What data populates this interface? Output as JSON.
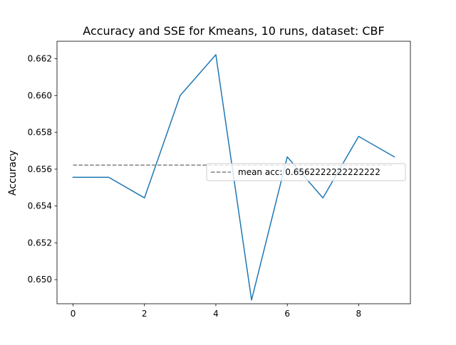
{
  "chart_data": {
    "type": "line",
    "title": "Accuracy and SSE for Kmeans, 10 runs, dataset: CBF",
    "xlabel": "",
    "ylabel": "Accuracy",
    "xlim": [
      -0.45,
      9.45
    ],
    "ylim": [
      0.64869,
      0.66295
    ],
    "x_ticks": [
      0,
      2,
      4,
      6,
      8
    ],
    "x_tick_labels": [
      "0",
      "2",
      "4",
      "6",
      "8"
    ],
    "y_ticks": [
      0.65,
      0.652,
      0.654,
      0.656,
      0.658,
      0.66,
      0.662
    ],
    "y_tick_labels": [
      "0.650",
      "0.652",
      "0.654",
      "0.656",
      "0.658",
      "0.660",
      "0.662"
    ],
    "grid": false,
    "legend_position": "center-right",
    "series": [
      {
        "x": [
          0,
          1,
          2,
          3,
          4,
          5,
          6,
          7,
          8,
          9
        ],
        "values": [
          0.65556,
          0.65556,
          0.65444,
          0.66,
          0.66222,
          0.64889,
          0.65667,
          0.65444,
          0.65778,
          0.65667
        ],
        "color": "#1f77b4",
        "style": "solid"
      },
      {
        "name": "mean acc: 0.6562222222222222",
        "x": [
          0,
          9
        ],
        "values": [
          0.6562222222222222,
          0.6562222222222222
        ],
        "color": "#808080",
        "style": "dashed"
      }
    ]
  }
}
